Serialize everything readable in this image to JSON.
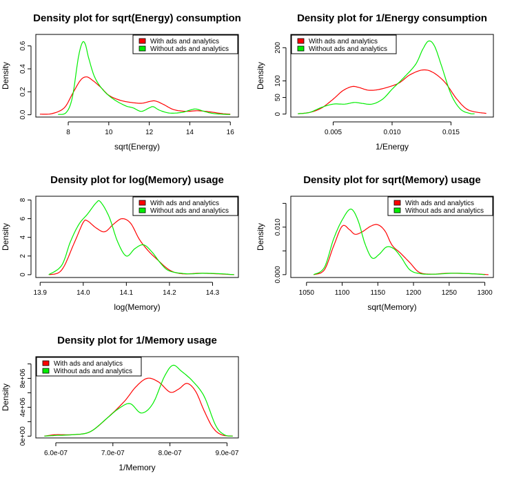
{
  "chart_data": [
    {
      "type": "line",
      "title": "Density plot for sqrt(Energy) consumption",
      "xlabel": "sqrt(Energy)",
      "ylabel": "Density",
      "xlim": [
        6.4,
        16.4
      ],
      "ylim": [
        -0.02,
        0.7
      ],
      "xticks": [
        8,
        10,
        12,
        14,
        16
      ],
      "xtick_labels": [
        "8",
        "10",
        "12",
        "14",
        "16"
      ],
      "yticks": [
        0.0,
        0.2,
        0.4,
        0.6
      ],
      "ytick_labels": [
        "0.0",
        "0.2",
        "0.4",
        "0.6"
      ],
      "legend_position": "top-right",
      "series": [
        {
          "name": "With ads and analytics",
          "color": "#ff0000",
          "x": [
            6.6,
            7.2,
            7.8,
            8.2,
            8.6,
            8.9,
            9.2,
            9.6,
            10.0,
            10.5,
            11.0,
            11.6,
            12.0,
            12.3,
            12.7,
            13.2,
            13.8,
            14.4,
            15.0,
            15.6,
            16.0
          ],
          "y": [
            0.005,
            0.01,
            0.06,
            0.18,
            0.3,
            0.33,
            0.3,
            0.24,
            0.17,
            0.13,
            0.11,
            0.1,
            0.115,
            0.12,
            0.09,
            0.045,
            0.03,
            0.035,
            0.025,
            0.01,
            0.005
          ]
        },
        {
          "name": "Without ads and analytics",
          "color": "#00ee00",
          "x": [
            7.5,
            7.9,
            8.2,
            8.5,
            8.7,
            8.85,
            9.0,
            9.3,
            9.7,
            10.2,
            10.8,
            11.2,
            11.6,
            12.0,
            12.2,
            12.5,
            13.0,
            13.6,
            14.0,
            14.3,
            14.7,
            15.2,
            16.0
          ],
          "y": [
            0.002,
            0.02,
            0.15,
            0.5,
            0.63,
            0.61,
            0.5,
            0.33,
            0.22,
            0.14,
            0.08,
            0.06,
            0.03,
            0.06,
            0.07,
            0.04,
            0.015,
            0.02,
            0.04,
            0.05,
            0.03,
            0.01,
            0.002
          ]
        }
      ]
    },
    {
      "type": "line",
      "title": "Density plot for 1/Energy consumption",
      "xlabel": "1/Energy",
      "ylabel": "Density",
      "xlim": [
        0.0014,
        0.0186
      ],
      "ylim": [
        -9,
        240
      ],
      "xticks": [
        0.005,
        0.01,
        0.015
      ],
      "xtick_labels": [
        "0.005",
        "0.010",
        "0.015"
      ],
      "yticks": [
        0,
        50,
        100,
        200
      ],
      "ytick_labels": [
        "0",
        "50",
        "100",
        "200"
      ],
      "legend_position": "top-left",
      "series": [
        {
          "name": "With ads and analytics",
          "color": "#ff0000",
          "x": [
            0.002,
            0.003,
            0.004,
            0.005,
            0.0058,
            0.0066,
            0.0072,
            0.008,
            0.009,
            0.0105,
            0.0115,
            0.0126,
            0.0135,
            0.0145,
            0.0155,
            0.0165,
            0.018
          ],
          "y": [
            1,
            5,
            18,
            45,
            70,
            83,
            80,
            72,
            75,
            92,
            118,
            133,
            125,
            95,
            45,
            12,
            2
          ]
        },
        {
          "name": "Without ads and analytics",
          "color": "#00ee00",
          "x": [
            0.002,
            0.003,
            0.004,
            0.005,
            0.006,
            0.0068,
            0.0075,
            0.0083,
            0.0092,
            0.01,
            0.011,
            0.012,
            0.0126,
            0.0131,
            0.0136,
            0.0142,
            0.015,
            0.0158,
            0.0166,
            0.017
          ],
          "y": [
            1,
            5,
            20,
            30,
            30,
            35,
            32,
            30,
            45,
            75,
            110,
            150,
            195,
            220,
            205,
            145,
            60,
            15,
            2,
            1
          ]
        }
      ]
    },
    {
      "type": "line",
      "title": "Density plot for log(Memory) usage",
      "xlabel": "log(Memory)",
      "ylabel": "Density",
      "xlim": [
        13.89,
        14.36
      ],
      "ylim": [
        -0.3,
        8.4
      ],
      "xticks": [
        13.9,
        14.0,
        14.1,
        14.2,
        14.3
      ],
      "xtick_labels": [
        "13.9",
        "14.0",
        "14.1",
        "14.2",
        "14.3"
      ],
      "yticks": [
        0,
        2,
        4,
        6,
        8
      ],
      "ytick_labels": [
        "0",
        "2",
        "4",
        "6",
        "8"
      ],
      "legend_position": "top-right",
      "series": [
        {
          "name": "With ads and analytics",
          "color": "#ff0000",
          "x": [
            13.92,
            13.95,
            13.98,
            14.0,
            14.01,
            14.03,
            14.05,
            14.07,
            14.09,
            14.11,
            14.13,
            14.15,
            14.17,
            14.2,
            14.23,
            14.27,
            14.31,
            14.35
          ],
          "y": [
            0.0,
            0.5,
            3.5,
            5.6,
            5.75,
            5.0,
            4.6,
            5.4,
            6.0,
            5.5,
            3.8,
            2.6,
            1.7,
            0.5,
            0.1,
            0.15,
            0.1,
            0.0
          ]
        },
        {
          "name": "Without ads and analytics",
          "color": "#00ee00",
          "x": [
            13.92,
            13.95,
            13.97,
            13.99,
            14.01,
            14.03,
            14.04,
            14.06,
            14.08,
            14.1,
            14.12,
            14.14,
            14.16,
            14.18,
            14.2,
            14.24,
            14.28,
            14.32,
            14.35
          ],
          "y": [
            0.0,
            1.0,
            3.5,
            5.4,
            6.5,
            7.7,
            7.8,
            6.2,
            3.5,
            2.0,
            2.8,
            3.2,
            2.4,
            1.2,
            0.4,
            0.1,
            0.15,
            0.1,
            0.0
          ]
        }
      ]
    },
    {
      "type": "line",
      "title": "Density plot for sqrt(Memory) usage",
      "xlabel": "sqrt(Memory)",
      "ylabel": "Density",
      "xlim": [
        1028,
        1312
      ],
      "ylim": [
        -0.0006,
        0.0165
      ],
      "xticks": [
        1050,
        1100,
        1150,
        1200,
        1250,
        1300
      ],
      "xtick_labels": [
        "1050",
        "1100",
        "1150",
        "1200",
        "1250",
        "1300"
      ],
      "yticks": [
        0.0,
        0.005,
        0.01,
        0.015
      ],
      "ytick_labels": [
        "0.000",
        "",
        "0.010",
        ""
      ],
      "legend_position": "top-right",
      "series": [
        {
          "name": "With ads and analytics",
          "color": "#ff0000",
          "x": [
            1060,
            1075,
            1088,
            1100,
            1110,
            1118,
            1128,
            1140,
            1150,
            1160,
            1170,
            1182,
            1195,
            1208,
            1225,
            1250,
            1280,
            1305
          ],
          "y": [
            0.0,
            0.001,
            0.006,
            0.0102,
            0.0095,
            0.0085,
            0.009,
            0.0102,
            0.0105,
            0.0092,
            0.0062,
            0.0045,
            0.0025,
            0.0005,
            0.0001,
            0.0003,
            0.0002,
            0.0
          ],
          "note": ""
        },
        {
          "name": "Without ads and analytics",
          "color": "#00ee00",
          "x": [
            1060,
            1075,
            1088,
            1100,
            1112,
            1122,
            1132,
            1142,
            1152,
            1162,
            1172,
            1182,
            1195,
            1210,
            1230,
            1255,
            1280,
            1300
          ],
          "y": [
            0.0,
            0.0015,
            0.0075,
            0.0115,
            0.0138,
            0.0115,
            0.0065,
            0.0035,
            0.0043,
            0.0058,
            0.0055,
            0.0038,
            0.001,
            0.0002,
            0.0001,
            0.0003,
            0.0002,
            0.0
          ]
        }
      ]
    },
    {
      "type": "line",
      "title": "Density plot for 1/Memory usage",
      "xlabel": "1/Memory",
      "ylabel": "Density",
      "xlim": [
        5.65e-07,
        9.2e-07
      ],
      "ylim": [
        -250000.0,
        11000000.0
      ],
      "xticks": [
        6e-07,
        7e-07,
        8e-07,
        9e-07
      ],
      "xtick_labels": [
        "6.0e-07",
        "7.0e-07",
        "8.0e-07",
        "9.0e-07"
      ],
      "yticks": [
        0,
        2000000.0,
        4000000.0,
        6000000.0,
        8000000.0,
        10000000.0
      ],
      "ytick_labels": [
        "0e+00",
        "",
        "4e+06",
        "",
        "8e+06",
        ""
      ],
      "legend_position": "top-left",
      "series": [
        {
          "name": "With ads and analytics",
          "color": "#ff0000",
          "x": [
            5.8e-07,
            6e-07,
            6.3e-07,
            6.6e-07,
            6.9e-07,
            7.2e-07,
            7.4e-07,
            7.6e-07,
            7.8e-07,
            8e-07,
            8.15e-07,
            8.3e-07,
            8.45e-07,
            8.6e-07,
            8.75e-07,
            8.9e-07,
            9.1e-07
          ],
          "y": [
            0,
            200000,
            200000,
            600000,
            2500000,
            4800000,
            6800000,
            8000000,
            7500000,
            6100000,
            6500000,
            7300000,
            6200000,
            3500000,
            1200000,
            200000,
            0
          ]
        },
        {
          "name": "Without ads and analytics",
          "color": "#00ee00",
          "x": [
            5.8e-07,
            6e-07,
            6.3e-07,
            6.6e-07,
            6.9e-07,
            7.1e-07,
            7.3e-07,
            7.5e-07,
            7.7e-07,
            7.9e-07,
            8.05e-07,
            8.2e-07,
            8.4e-07,
            8.6e-07,
            8.8e-07,
            8.95e-07,
            9.1e-07
          ],
          "y": [
            0,
            100000,
            200000,
            600000,
            2500000,
            3800000,
            4500000,
            3200000,
            4500000,
            8200000,
            9800000,
            9000000,
            7600000,
            5500000,
            1500000,
            200000,
            0
          ]
        }
      ]
    }
  ]
}
